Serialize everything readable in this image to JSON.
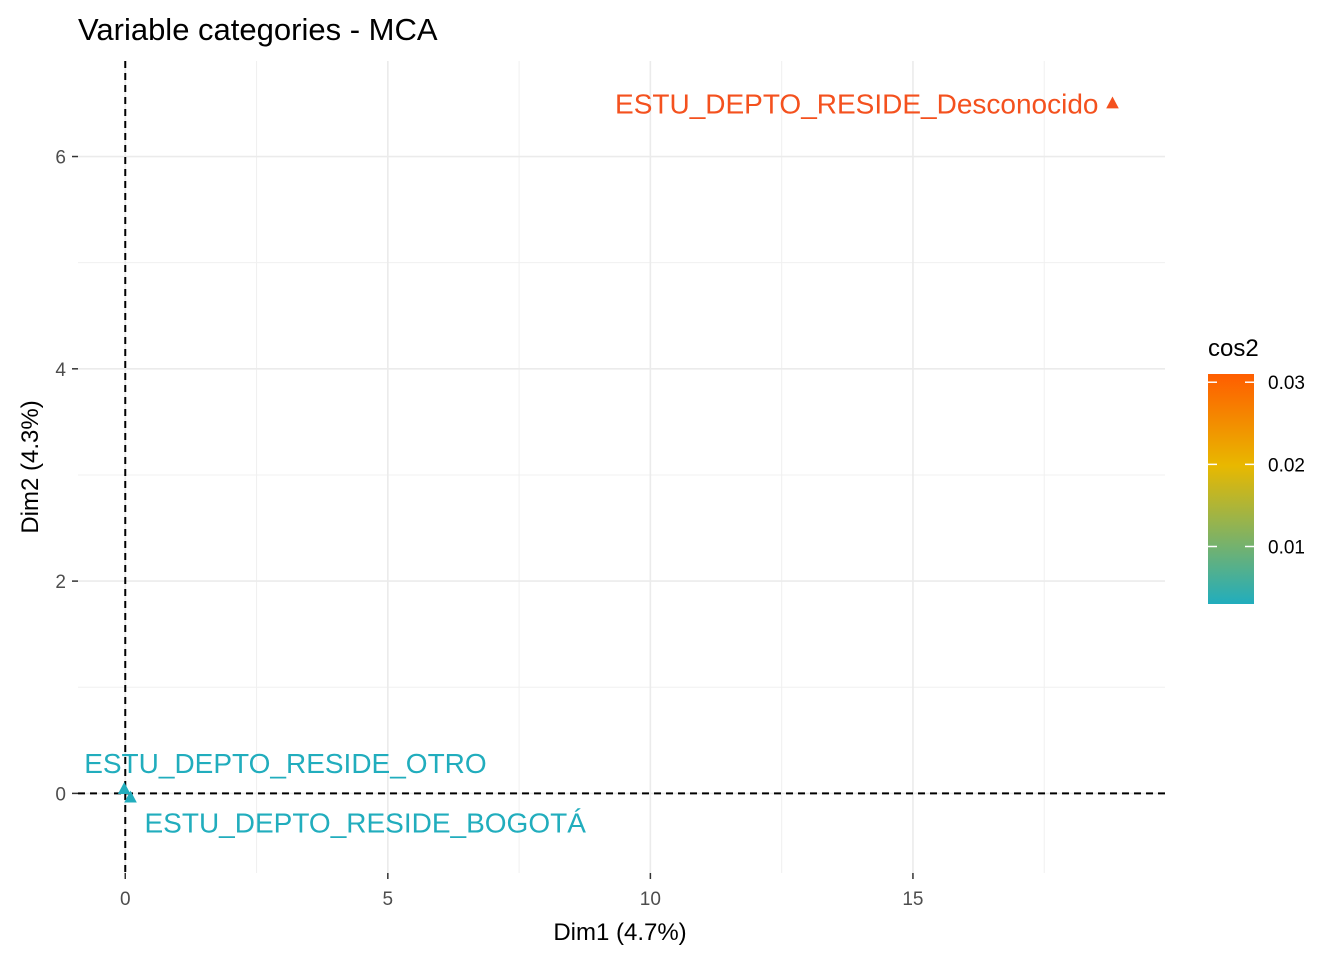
{
  "chart_data": {
    "type": "scatter",
    "title": "Variable categories - MCA",
    "xlabel": "Dim1 (4.7%)",
    "ylabel": "Dim2 (4.3%)",
    "xlim": [
      -0.9,
      19.8
    ],
    "ylim": [
      -0.75,
      6.9
    ],
    "x_ticks": [
      0,
      5,
      10,
      15
    ],
    "y_ticks": [
      0,
      2,
      4,
      6
    ],
    "grid": true,
    "reference_lines": {
      "x": 0,
      "y": 0,
      "style": "dashed"
    },
    "points": [
      {
        "label": "ESTU_DEPTO_RESIDE_Desconocido",
        "x": 18.8,
        "y": 6.5,
        "cos2": 0.031,
        "color": "#f4511e"
      },
      {
        "label": "ESTU_DEPTO_RESIDE_OTRO",
        "x": -0.02,
        "y": 0.04,
        "cos2": 0.003,
        "color": "#21adbd"
      },
      {
        "label": "ESTU_DEPTO_RESIDE_BOGOTÁ",
        "x": 0.1,
        "y": -0.04,
        "cos2": 0.003,
        "color": "#21adbd"
      }
    ],
    "legend": {
      "title": "cos2",
      "placement": "right",
      "min": 0.003,
      "max": 0.031,
      "ticks": [
        0.01,
        0.02,
        0.03
      ],
      "tick_labels": [
        "0.01",
        "0.02",
        "0.03"
      ],
      "colors": [
        "#21adbd",
        "#e8b800",
        "#ff5d00"
      ]
    }
  }
}
